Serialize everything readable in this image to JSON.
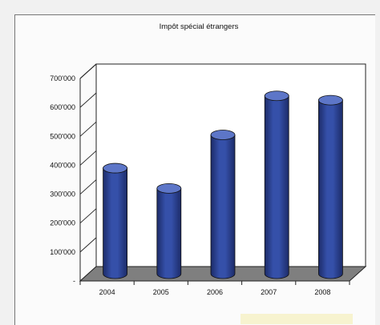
{
  "chart_data": {
    "type": "bar",
    "title": "Impôt spécial étrangers",
    "categories": [
      "2004",
      "2005",
      "2006",
      "2007",
      "2008"
    ],
    "values": [
      365000,
      295000,
      480000,
      615000,
      600000
    ],
    "y_tick_labels": [
      "-",
      "100'000",
      "200'000",
      "300'000",
      "400'000",
      "500'000",
      "600'000",
      "700'000"
    ],
    "ylim": [
      0,
      700000
    ],
    "grid": true,
    "colors": {
      "bar": "#3550a9",
      "bar_dark": "#1c2b68",
      "bar_top": "#5d76c8",
      "floor": "#7f7f7f"
    }
  }
}
